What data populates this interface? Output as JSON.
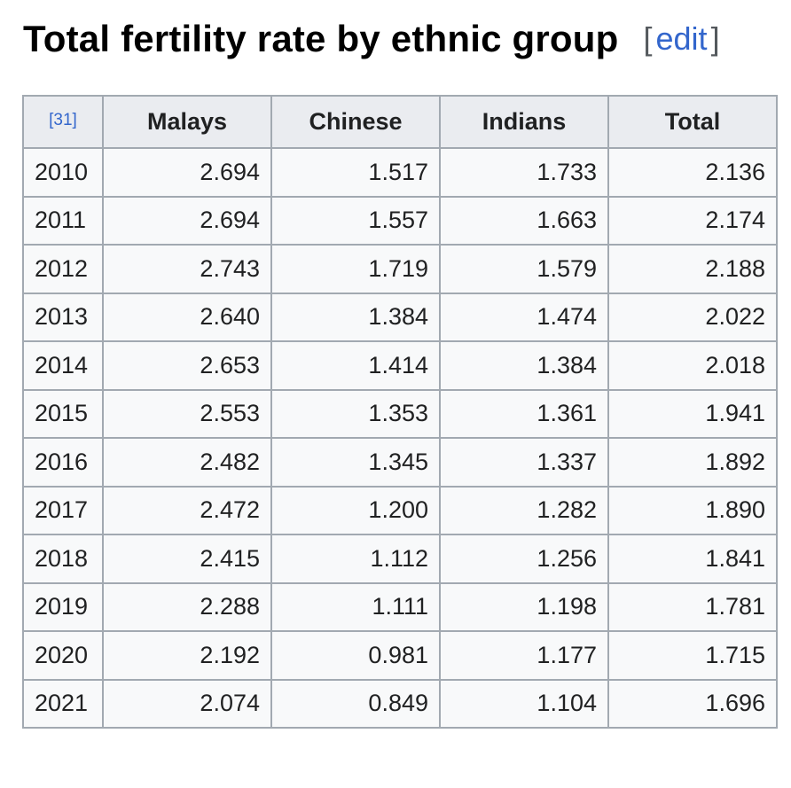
{
  "heading": {
    "title": "Total fertility rate by ethnic group",
    "edit_open": "[",
    "edit_label": "edit",
    "edit_close": "]"
  },
  "table": {
    "ref": "[31]",
    "headers": [
      "Malays",
      "Chinese",
      "Indians",
      "Total"
    ],
    "rows": [
      {
        "year": "2010",
        "values": [
          "2.694",
          "1.517",
          "1.733",
          "2.136"
        ]
      },
      {
        "year": "2011",
        "values": [
          "2.694",
          "1.557",
          "1.663",
          "2.174"
        ]
      },
      {
        "year": "2012",
        "values": [
          "2.743",
          "1.719",
          "1.579",
          "2.188"
        ]
      },
      {
        "year": "2013",
        "values": [
          "2.640",
          "1.384",
          "1.474",
          "2.022"
        ]
      },
      {
        "year": "2014",
        "values": [
          "2.653",
          "1.414",
          "1.384",
          "2.018"
        ]
      },
      {
        "year": "2015",
        "values": [
          "2.553",
          "1.353",
          "1.361",
          "1.941"
        ]
      },
      {
        "year": "2016",
        "values": [
          "2.482",
          "1.345",
          "1.337",
          "1.892"
        ]
      },
      {
        "year": "2017",
        "values": [
          "2.472",
          "1.200",
          "1.282",
          "1.890"
        ]
      },
      {
        "year": "2018",
        "values": [
          "2.415",
          "1.112",
          "1.256",
          "1.841"
        ]
      },
      {
        "year": "2019",
        "values": [
          "2.288",
          "1.111",
          "1.198",
          "1.781"
        ]
      },
      {
        "year": "2020",
        "values": [
          "2.192",
          "0.981",
          "1.177",
          "1.715"
        ]
      },
      {
        "year": "2021",
        "values": [
          "2.074",
          "0.849",
          "1.104",
          "1.696"
        ]
      }
    ]
  }
}
